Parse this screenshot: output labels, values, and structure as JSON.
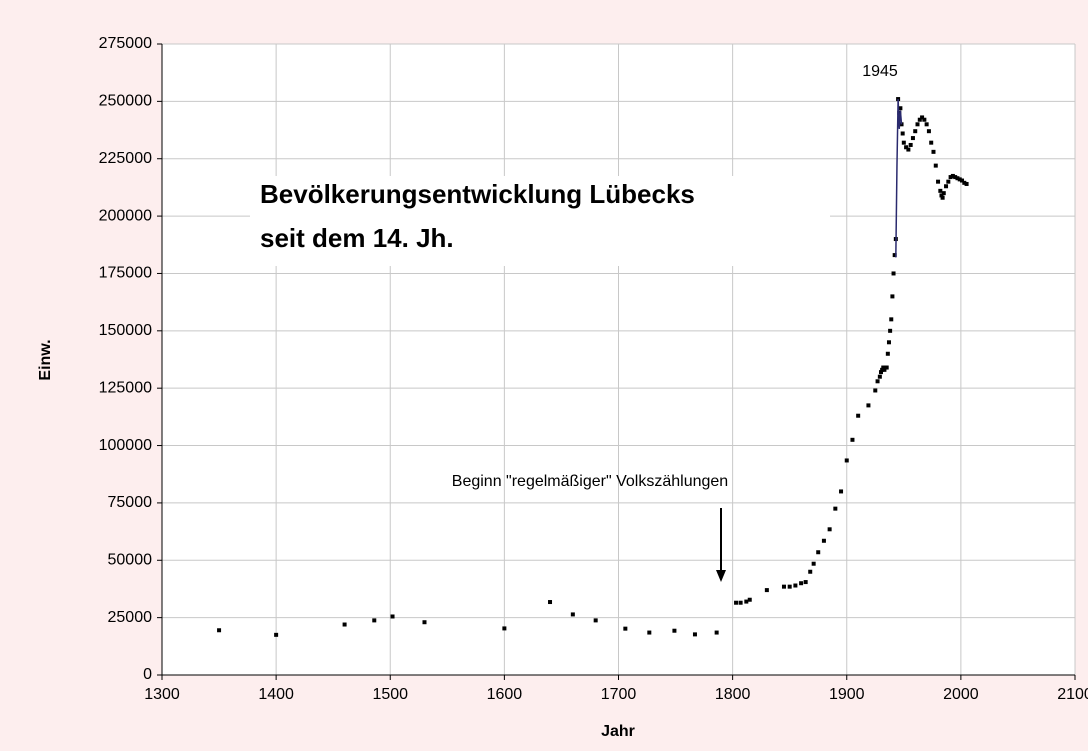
{
  "chart_data": {
    "type": "scatter",
    "title": [
      "Bevölkerungsentwicklung Lübecks",
      "seit dem 14. Jh."
    ],
    "xlabel": "Jahr",
    "ylabel": "Einw.",
    "annotations": [
      "1945",
      "Beginn \"regelmäßiger\" Volkszählungen"
    ],
    "xlim": [
      1300,
      2100
    ],
    "xticks": [
      1300,
      1400,
      1500,
      1600,
      1700,
      1800,
      1900,
      2000,
      2100
    ],
    "ylim": [
      0,
      275000
    ],
    "yticks": [
      0,
      25000,
      50000,
      75000,
      100000,
      125000,
      150000,
      175000,
      200000,
      225000,
      250000,
      275000
    ],
    "grid": true,
    "series": [
      {
        "style": "markers",
        "color": "#000000",
        "x": [
          1350,
          1400,
          1460,
          1486,
          1502,
          1530,
          1600,
          1640,
          1660,
          1680,
          1706,
          1727,
          1749,
          1767,
          1786,
          1803,
          1807,
          1812,
          1815,
          1830,
          1845,
          1850,
          1855,
          1860,
          1864,
          1868,
          1871,
          1875,
          1880,
          1885,
          1890,
          1895,
          1900,
          1905,
          1910,
          1919,
          1925,
          1927,
          1929,
          1930,
          1931,
          1932,
          1933,
          1934,
          1935,
          1936,
          1937,
          1938,
          1939,
          1940,
          1941,
          1942,
          1943,
          1945,
          1946,
          1947,
          1948,
          1949,
          1950,
          1952,
          1954,
          1956,
          1958,
          1960,
          1962,
          1964,
          1966,
          1968,
          1970,
          1972,
          1974,
          1976,
          1978,
          1980,
          1982,
          1983,
          1984,
          1985,
          1987,
          1989,
          1991,
          1993,
          1995,
          1997,
          1999,
          2001,
          2003,
          2005
        ],
        "values": [
          19500,
          17500,
          22000,
          23800,
          25500,
          23000,
          20300,
          31800,
          26400,
          23800,
          20200,
          18500,
          19300,
          17700,
          18500,
          31500,
          31500,
          32000,
          32800,
          37000,
          38500,
          38500,
          39000,
          40000,
          40500,
          45000,
          48500,
          53500,
          58500,
          63500,
          72500,
          80000,
          93500,
          102500,
          113000,
          117500,
          124000,
          128000,
          130000,
          132000,
          133000,
          134000,
          133000,
          134000,
          134000,
          140000,
          145000,
          150000,
          155000,
          165000,
          175000,
          183000,
          190000,
          251000,
          245000,
          247000,
          240000,
          236000,
          232000,
          230000,
          229000,
          231000,
          234000,
          237000,
          240000,
          242000,
          243000,
          242000,
          240000,
          237000,
          232000,
          228000,
          222000,
          215000,
          211000,
          209000,
          208000,
          210000,
          213000,
          215000,
          217000,
          217500,
          217000,
          216500,
          216000,
          215500,
          214500,
          214000
        ]
      },
      {
        "style": "line",
        "color": "#2a2a6e",
        "x": [
          1943,
          1944,
          1945,
          1946,
          1947,
          1948
        ],
        "values": [
          182000,
          222000,
          251000,
          238000,
          246000,
          240000
        ]
      }
    ]
  }
}
